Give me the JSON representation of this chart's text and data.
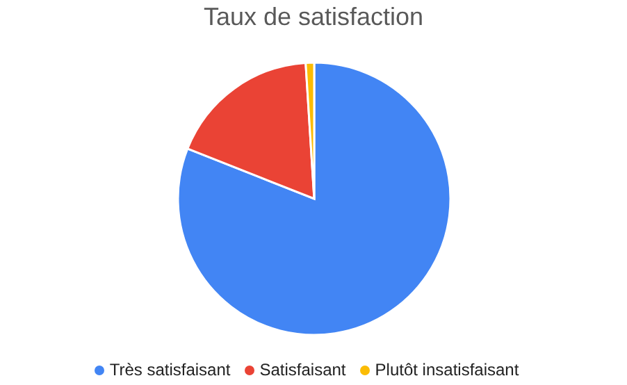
{
  "chart_data": {
    "type": "pie",
    "title": "Taux de satisfaction",
    "categories": [
      "Très satisfaisant",
      "Satisfaisant",
      "Plutôt insatisfaisant"
    ],
    "values": [
      81,
      18,
      1
    ],
    "colors": [
      "#4285f4",
      "#ea4335",
      "#fbbc04"
    ],
    "legend": "bottom"
  }
}
